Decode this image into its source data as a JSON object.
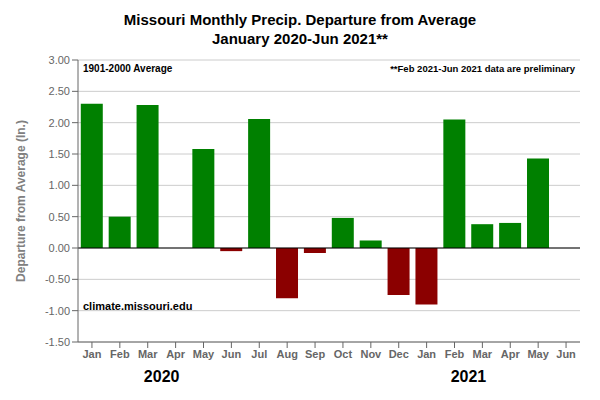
{
  "chart_data": {
    "type": "bar",
    "title": "Missouri Monthly Precip. Departure from Average\nJanuary 2020-Jun 2021**",
    "ylabel": "Departure from Average (In.)",
    "categories": [
      "Jan",
      "Feb",
      "Mar",
      "Apr",
      "May",
      "Jun",
      "Jul",
      "Aug",
      "Sep",
      "Oct",
      "Nov",
      "Dec",
      "Jan",
      "Feb",
      "Mar",
      "Apr",
      "May",
      "Jun"
    ],
    "values": [
      2.3,
      0.5,
      2.28,
      0.0,
      1.58,
      -0.05,
      2.06,
      -0.8,
      -0.08,
      0.48,
      0.12,
      -0.75,
      -0.9,
      2.05,
      0.38,
      0.4,
      1.43,
      0.0
    ],
    "colors": [
      "#008000",
      "#008000",
      "#008000",
      "#008000",
      "#008000",
      "#8B0000",
      "#008000",
      "#8B0000",
      "#8B0000",
      "#008000",
      "#008000",
      "#8B0000",
      "#8B0000",
      "#008000",
      "#008000",
      "#008000",
      "#008000",
      "#008000"
    ],
    "ylim": [
      -1.5,
      3.0
    ],
    "yticks": [
      {
        "value": -1.5,
        "label": "-1.50"
      },
      {
        "value": -1.0,
        "label": "-1.00"
      },
      {
        "value": -0.5,
        "label": "-0.50"
      },
      {
        "value": 0,
        "label": "0.00"
      },
      {
        "value": 0.5,
        "label": "0.50"
      },
      {
        "value": 1.0,
        "label": "1.00"
      },
      {
        "value": 1.5,
        "label": "1.50"
      },
      {
        "value": 2.0,
        "label": "2.00"
      },
      {
        "value": 2.5,
        "label": "2.50"
      },
      {
        "value": 3.0,
        "label": "3.00"
      }
    ],
    "grid": true,
    "annotations": [
      "1901-2000 Average",
      "**Feb 2021-Jun 2021 data are preliminary",
      "climate.missouri.edu",
      "2020",
      "2021"
    ]
  }
}
